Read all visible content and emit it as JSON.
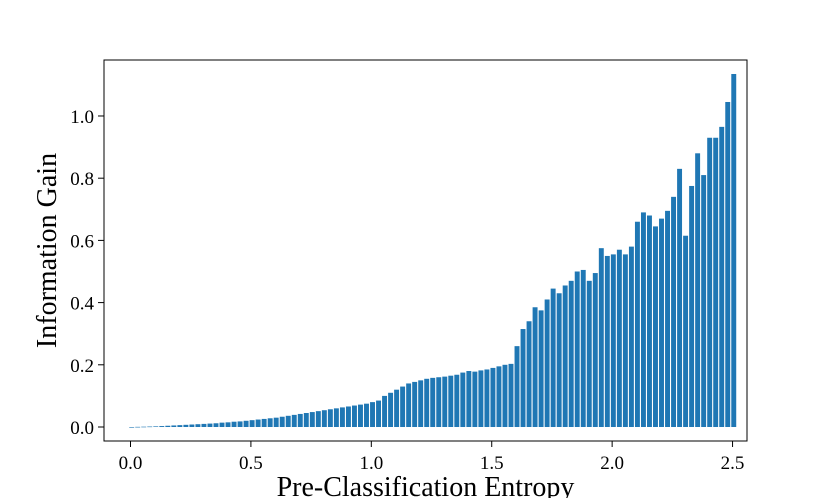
{
  "chart_data": {
    "type": "bar",
    "title": "",
    "xlabel": "Pre-Classification Entropy",
    "ylabel": "Information Gain",
    "xlim": [
      -0.11,
      2.56
    ],
    "ylim": [
      -0.045,
      1.18
    ],
    "xticks": [
      0.0,
      0.5,
      1.0,
      1.5,
      2.0,
      2.5
    ],
    "xtick_labels": [
      "0.0",
      "0.5",
      "1.0",
      "1.5",
      "2.0",
      "2.5"
    ],
    "yticks": [
      0.0,
      0.2,
      0.4,
      0.6,
      0.8,
      1.0
    ],
    "ytick_labels": [
      "0.0",
      "0.2",
      "0.4",
      "0.6",
      "0.8",
      "1.0"
    ],
    "bar_color": "#1f77b4",
    "grid": false,
    "legend": "none",
    "bar_width": 0.0205,
    "x": [
      0.005,
      0.03,
      0.055,
      0.08,
      0.105,
      0.13,
      0.155,
      0.18,
      0.205,
      0.23,
      0.255,
      0.28,
      0.305,
      0.33,
      0.355,
      0.38,
      0.405,
      0.43,
      0.455,
      0.48,
      0.505,
      0.53,
      0.555,
      0.58,
      0.605,
      0.63,
      0.655,
      0.68,
      0.705,
      0.73,
      0.755,
      0.78,
      0.805,
      0.83,
      0.855,
      0.88,
      0.905,
      0.93,
      0.955,
      0.98,
      1.005,
      1.03,
      1.055,
      1.08,
      1.105,
      1.13,
      1.155,
      1.18,
      1.205,
      1.23,
      1.255,
      1.28,
      1.305,
      1.33,
      1.355,
      1.38,
      1.405,
      1.43,
      1.455,
      1.48,
      1.505,
      1.53,
      1.555,
      1.58,
      1.605,
      1.63,
      1.655,
      1.68,
      1.705,
      1.73,
      1.755,
      1.78,
      1.805,
      1.83,
      1.855,
      1.88,
      1.905,
      1.93,
      1.955,
      1.98,
      2.005,
      2.03,
      2.055,
      2.08,
      2.105,
      2.13,
      2.155,
      2.18,
      2.205,
      2.23,
      2.255,
      2.28,
      2.305,
      2.33,
      2.355,
      2.38,
      2.405,
      2.43,
      2.455,
      2.48,
      2.505
    ],
    "values": [
      0.0,
      0.0005,
      0.001,
      0.0015,
      0.002,
      0.003,
      0.004,
      0.005,
      0.006,
      0.007,
      0.008,
      0.009,
      0.01,
      0.011,
      0.012,
      0.014,
      0.015,
      0.017,
      0.018,
      0.02,
      0.022,
      0.024,
      0.026,
      0.028,
      0.03,
      0.033,
      0.036,
      0.039,
      0.042,
      0.045,
      0.048,
      0.051,
      0.054,
      0.057,
      0.06,
      0.063,
      0.066,
      0.069,
      0.072,
      0.075,
      0.08,
      0.085,
      0.1,
      0.11,
      0.12,
      0.13,
      0.14,
      0.145,
      0.15,
      0.155,
      0.158,
      0.16,
      0.162,
      0.165,
      0.168,
      0.175,
      0.18,
      0.178,
      0.182,
      0.185,
      0.19,
      0.195,
      0.2,
      0.203,
      0.26,
      0.315,
      0.34,
      0.385,
      0.375,
      0.41,
      0.445,
      0.43,
      0.455,
      0.47,
      0.5,
      0.505,
      0.47,
      0.495,
      0.575,
      0.55,
      0.555,
      0.57,
      0.555,
      0.58,
      0.66,
      0.69,
      0.68,
      0.645,
      0.67,
      0.695,
      0.74,
      0.83,
      0.615,
      0.775,
      0.88,
      0.81,
      0.93,
      0.93,
      0.965,
      1.045,
      1.135
    ]
  }
}
